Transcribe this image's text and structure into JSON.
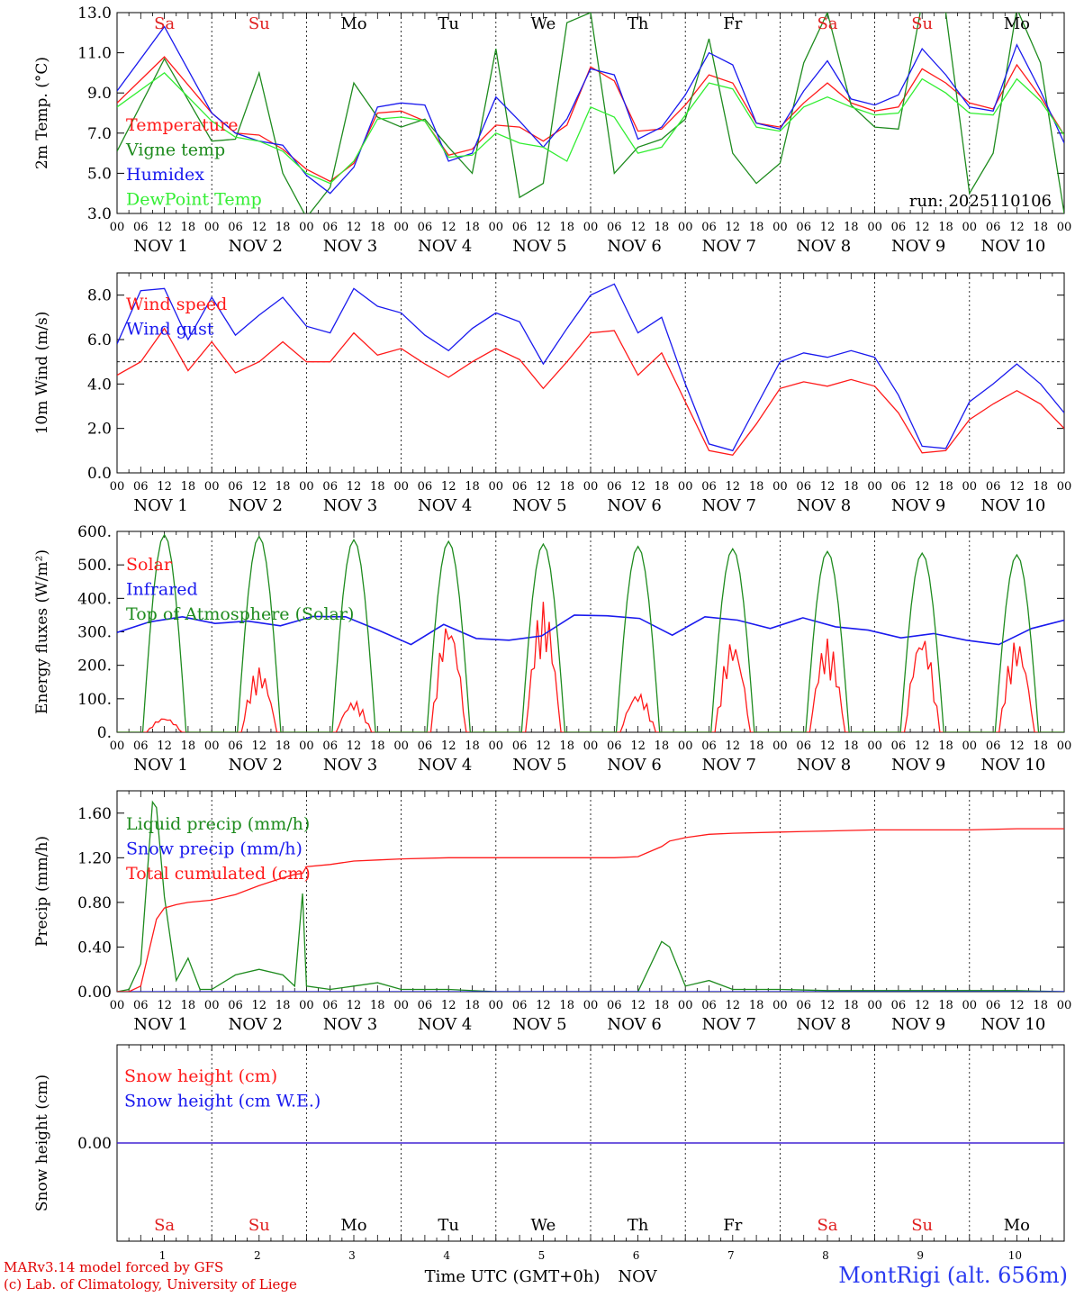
{
  "day_labels": [
    "Sa",
    "Su",
    "Mo",
    "Tu",
    "We",
    "Th",
    "Fr",
    "Sa",
    "Su",
    "Mo"
  ],
  "weekend_color": "#e02020",
  "hour_ticks": [
    "00",
    "06",
    "12",
    "18"
  ],
  "hour_tick_end": "00",
  "date_labels": [
    "NOV  1",
    "NOV  2",
    "NOV  3",
    "NOV  4",
    "NOV  5",
    "NOV  6",
    "NOV  7",
    "NOV  8",
    "NOV  9",
    "NOV 10"
  ],
  "bottom_day_numbers": [
    "1",
    "2",
    "3",
    "4",
    "5",
    "6",
    "7",
    "8",
    "9",
    "10"
  ],
  "xaxis_title": "Time UTC (GMT+0h)",
  "xaxis_month": "NOV",
  "footer": {
    "line1": "MARv3.14 model forced by GFS",
    "line2": "(c) Lab. of Climatology, University of Liege",
    "station": "MontRigi (alt. 656m)"
  },
  "chart_data": [
    {
      "type": "line",
      "ylabel": "2m Temp. (°C)",
      "ylim": [
        3.0,
        13.0
      ],
      "yticks": [
        "3.0",
        "5.0",
        "7.0",
        "9.0",
        "11.0",
        "13.0"
      ],
      "annotation": "run: 2025110106",
      "x": [
        0,
        12,
        24,
        30,
        36,
        42,
        48,
        54,
        60,
        66,
        72,
        78,
        84,
        90,
        96,
        102,
        108,
        114,
        120,
        126,
        132,
        138,
        144,
        150,
        156,
        162,
        168,
        174,
        180,
        186,
        192,
        198,
        204,
        210,
        216,
        222,
        228,
        234,
        240
      ],
      "series": [
        {
          "name": "Temperature",
          "color": "#ff1a1a",
          "values": [
            8.5,
            10.8,
            8.0,
            7.0,
            6.9,
            6.2,
            5.2,
            4.6,
            5.5,
            8.0,
            8.1,
            7.6,
            5.9,
            6.2,
            7.4,
            7.3,
            6.6,
            7.4,
            10.3,
            9.6,
            7.1,
            7.2,
            8.4,
            9.9,
            9.5,
            7.5,
            7.3,
            8.5,
            9.5,
            8.5,
            8.1,
            8.3,
            10.2,
            9.5,
            8.5,
            8.2,
            10.4,
            8.8,
            6.9
          ]
        },
        {
          "name": "Vigne temp",
          "color": "#1e8b1e",
          "values": [
            6.1,
            10.7,
            6.6,
            6.7,
            10.0,
            5.0,
            2.8,
            4.3,
            9.5,
            7.8,
            7.3,
            7.7,
            6.3,
            5.0,
            11.2,
            3.8,
            4.5,
            12.5,
            13.0,
            5.0,
            6.3,
            6.7,
            7.7,
            11.7,
            6.0,
            4.5,
            5.5,
            10.5,
            13.0,
            8.4,
            7.3,
            7.2,
            13.5,
            13.0,
            4.0,
            6.0,
            13.2,
            10.5,
            3.0
          ]
        },
        {
          "name": "Humidex",
          "color": "#1a1aee",
          "values": [
            9.1,
            12.3,
            8.0,
            7.0,
            6.6,
            6.4,
            4.9,
            4.0,
            5.3,
            8.3,
            8.5,
            8.4,
            5.6,
            6.0,
            8.8,
            7.6,
            6.3,
            7.7,
            10.2,
            9.9,
            6.7,
            7.3,
            8.9,
            11.0,
            10.4,
            7.5,
            7.2,
            9.1,
            10.6,
            8.7,
            8.4,
            8.9,
            11.2,
            9.9,
            8.3,
            8.1,
            11.4,
            9.1,
            6.5
          ]
        },
        {
          "name": "DewPoint Temp",
          "color": "#33ee33",
          "values": [
            8.3,
            10.0,
            7.6,
            6.8,
            6.6,
            6.1,
            5.0,
            4.5,
            5.6,
            7.7,
            7.8,
            7.6,
            5.8,
            5.9,
            7.0,
            6.5,
            6.3,
            5.6,
            8.3,
            7.8,
            6.0,
            6.3,
            7.9,
            9.5,
            9.2,
            7.3,
            7.1,
            8.3,
            8.8,
            8.3,
            7.9,
            8.0,
            9.7,
            9.0,
            8.0,
            7.9,
            9.7,
            8.6,
            6.9
          ]
        }
      ]
    },
    {
      "type": "line",
      "ylabel": "10m Wind (m/s)",
      "ylim": [
        0.0,
        9.0
      ],
      "yticks": [
        "0.0",
        "2.0",
        "4.0",
        "6.0",
        "8.0"
      ],
      "reference_line": 5.0,
      "x": [
        0,
        6,
        12,
        18,
        24,
        30,
        36,
        42,
        48,
        54,
        60,
        66,
        72,
        78,
        84,
        90,
        96,
        102,
        108,
        114,
        120,
        126,
        132,
        138,
        144,
        150,
        156,
        162,
        168,
        174,
        180,
        186,
        192,
        198,
        204,
        210,
        216,
        222,
        228,
        234,
        240
      ],
      "series": [
        {
          "name": "Wind speed",
          "color": "#ff1a1a",
          "values": [
            4.4,
            5.0,
            6.5,
            4.6,
            5.9,
            4.5,
            5.0,
            5.9,
            5.0,
            5.0,
            6.3,
            5.3,
            5.6,
            4.9,
            4.3,
            5.0,
            5.6,
            5.1,
            3.8,
            5.0,
            6.3,
            6.4,
            4.4,
            5.4,
            3.2,
            1.0,
            0.8,
            2.2,
            3.8,
            4.1,
            3.9,
            4.2,
            3.9,
            2.7,
            0.9,
            1.0,
            2.4,
            3.1,
            3.7,
            3.1,
            2.0
          ]
        },
        {
          "name": "Wind gust",
          "color": "#1a1aee",
          "values": [
            5.8,
            8.2,
            8.3,
            6.0,
            7.9,
            6.2,
            7.1,
            7.9,
            6.6,
            6.3,
            8.3,
            7.5,
            7.2,
            6.2,
            5.5,
            6.5,
            7.2,
            6.8,
            4.9,
            6.5,
            8.0,
            8.5,
            6.3,
            7.0,
            4.0,
            1.3,
            1.0,
            3.0,
            5.0,
            5.4,
            5.2,
            5.5,
            5.2,
            3.5,
            1.2,
            1.1,
            3.2,
            4.0,
            4.9,
            4.0,
            2.7
          ]
        }
      ]
    },
    {
      "type": "line",
      "ylabel": "Energy fluxes (W/m²)",
      "ylim": [
        0,
        600
      ],
      "yticks": [
        "0.",
        "100.",
        "200.",
        "300.",
        "400.",
        "500.",
        "600."
      ],
      "series": [
        {
          "name": "Solar",
          "color": "#ff1a1a",
          "daily_peaks": [
            45,
            195,
            95,
            340,
            390,
            120,
            280,
            280,
            300,
            280
          ]
        },
        {
          "name": "Infrared",
          "color": "#1a1aee",
          "values": [
            298,
            330,
            345,
            325,
            332,
            318,
            346,
            345,
            305,
            262,
            322,
            280,
            275,
            288,
            350,
            348,
            340,
            290,
            345,
            335,
            310,
            342,
            315,
            305,
            282,
            295,
            275,
            262,
            310,
            335
          ]
        },
        {
          "name": "Top of Atmosphere (Solar)",
          "color": "#1e8b1e",
          "daily_peaks": [
            590,
            585,
            575,
            570,
            562,
            555,
            548,
            540,
            535,
            530
          ]
        }
      ]
    },
    {
      "type": "line",
      "ylabel": "Precip (mm/h)",
      "ylim": [
        0.0,
        1.8
      ],
      "yticks": [
        "0.00",
        "0.40",
        "0.80",
        "1.20",
        "1.60"
      ],
      "x": [
        0,
        3,
        6,
        9,
        10,
        12,
        15,
        18,
        21,
        24,
        30,
        36,
        42,
        45,
        47,
        48,
        54,
        60,
        66,
        72,
        84,
        96,
        120,
        126,
        132,
        138,
        140,
        144,
        150,
        156,
        168,
        180,
        192,
        204,
        216,
        228,
        240
      ],
      "series": [
        {
          "name": "Liquid precip (mm/h)",
          "color": "#1e8b1e",
          "values": [
            0.0,
            0.02,
            0.25,
            1.7,
            1.65,
            0.85,
            0.1,
            0.3,
            0.02,
            0.02,
            0.15,
            0.2,
            0.15,
            0.05,
            0.88,
            0.05,
            0.02,
            0.05,
            0.08,
            0.02,
            0.02,
            0.0,
            0.0,
            0.0,
            0.0,
            0.45,
            0.4,
            0.05,
            0.1,
            0.02,
            0.02,
            0.01,
            0.01,
            0.01,
            0.01,
            0.01,
            0.0
          ]
        },
        {
          "name": "Snow precip (mm/h)",
          "color": "#1a1aee",
          "values": [
            0,
            0,
            0,
            0,
            0,
            0,
            0,
            0,
            0,
            0,
            0,
            0,
            0,
            0,
            0,
            0,
            0,
            0,
            0,
            0,
            0,
            0,
            0,
            0,
            0,
            0,
            0,
            0,
            0,
            0,
            0,
            0,
            0,
            0,
            0,
            0,
            0
          ]
        },
        {
          "name": "Total cumulated (cm)",
          "color": "#ff1a1a",
          "values": [
            0.0,
            0.0,
            0.05,
            0.5,
            0.65,
            0.75,
            0.78,
            0.8,
            0.81,
            0.82,
            0.87,
            0.95,
            1.02,
            1.05,
            1.06,
            1.12,
            1.14,
            1.17,
            1.18,
            1.19,
            1.2,
            1.2,
            1.2,
            1.2,
            1.21,
            1.3,
            1.35,
            1.38,
            1.41,
            1.42,
            1.43,
            1.44,
            1.45,
            1.45,
            1.45,
            1.46,
            1.46
          ]
        }
      ]
    },
    {
      "type": "line",
      "ylabel": "Snow height (cm)",
      "ylim": [
        -1.0,
        1.0
      ],
      "yticks": [
        "0.00"
      ],
      "series": [
        {
          "name": "Snow height (cm)",
          "color": "#ff1a1a",
          "values": [
            0,
            0
          ]
        },
        {
          "name": "Snow height (cm W.E.)",
          "color": "#1a1aee",
          "values": [
            0,
            0
          ]
        }
      ]
    }
  ]
}
